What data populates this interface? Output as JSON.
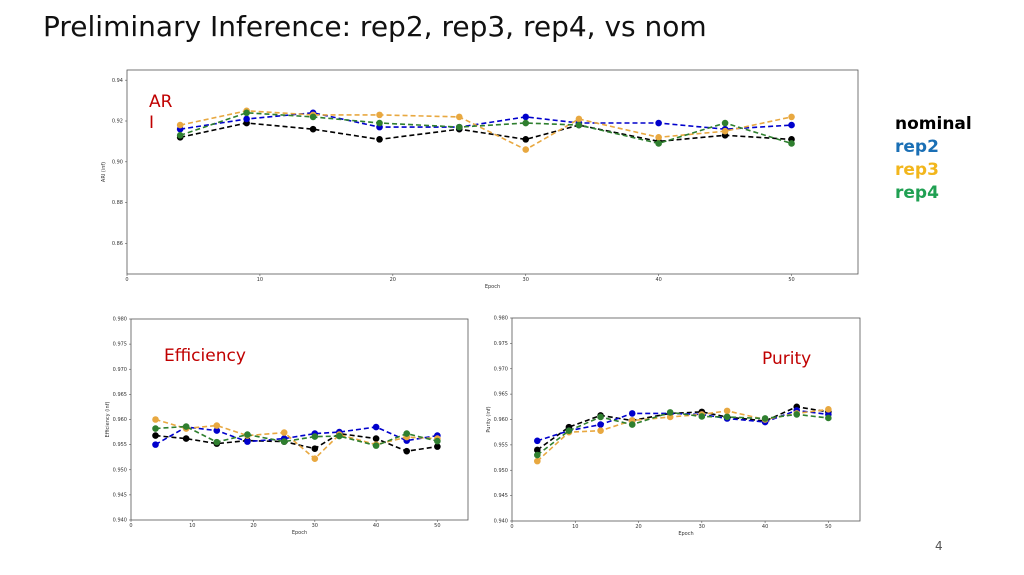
{
  "title": "Preliminary Inference: rep2, rep3, rep4, vs nom",
  "page_number": "4",
  "legend": [
    {
      "label": "nominal",
      "color": "#000000"
    },
    {
      "label": "rep2",
      "color": "#1a6fb5"
    },
    {
      "label": "rep3",
      "color": "#f2b61c"
    },
    {
      "label": "rep4",
      "color": "#1fa052"
    }
  ],
  "line_colors": {
    "nominal": "#000000",
    "rep2": "#0000cc",
    "rep3": "#e8a840",
    "rep4": "#2f7f2f"
  },
  "overlay_color": "#c00000",
  "chart_data": [
    {
      "type": "line",
      "id": "ari",
      "overlay_label": "AR\nI",
      "xlabel": "Epoch",
      "ylabel": "ARI (inf)",
      "xlim": [
        0,
        55
      ],
      "ylim": [
        0.845,
        0.945
      ],
      "xticks": [
        0,
        10,
        20,
        30,
        40,
        50
      ],
      "yticks": [
        0.86,
        0.88,
        0.9,
        0.92,
        0.94
      ],
      "ytick_labels": [
        "0.86",
        "0.88",
        "0.90",
        "0.92",
        "0.94"
      ],
      "x": [
        4,
        9,
        14,
        19,
        25,
        30,
        34,
        40,
        45,
        50
      ],
      "series": [
        {
          "key": "nominal",
          "values": [
            0.912,
            0.919,
            0.916,
            0.911,
            0.916,
            0.911,
            0.918,
            0.91,
            0.913,
            0.911
          ]
        },
        {
          "key": "rep2",
          "values": [
            0.916,
            0.921,
            0.924,
            0.917,
            0.917,
            0.922,
            0.919,
            0.919,
            0.916,
            0.918
          ]
        },
        {
          "key": "rep3",
          "values": [
            0.918,
            0.925,
            0.923,
            0.923,
            0.922,
            0.906,
            0.921,
            0.912,
            0.915,
            0.922
          ]
        },
        {
          "key": "rep4",
          "values": [
            0.913,
            0.924,
            0.922,
            0.919,
            0.917,
            0.919,
            0.918,
            0.909,
            0.919,
            0.909
          ]
        }
      ]
    },
    {
      "type": "line",
      "id": "efficiency",
      "overlay_label": "Efficiency",
      "xlabel": "Epoch",
      "ylabel": "Efficiency (inf)",
      "xlim": [
        0,
        55
      ],
      "ylim": [
        0.94,
        0.98
      ],
      "xticks": [
        0,
        10,
        20,
        30,
        40,
        50
      ],
      "yticks": [
        0.94,
        0.945,
        0.95,
        0.955,
        0.96,
        0.965,
        0.97,
        0.975,
        0.98
      ],
      "ytick_labels": [
        "0.940",
        "0.945",
        "0.950",
        "0.955",
        "0.960",
        "0.965",
        "0.970",
        "0.975",
        "0.980"
      ],
      "x": [
        4,
        9,
        14,
        19,
        25,
        30,
        34,
        40,
        45,
        50
      ],
      "series": [
        {
          "key": "nominal",
          "values": [
            0.9568,
            0.9562,
            0.9552,
            0.9558,
            0.9556,
            0.9542,
            0.9572,
            0.9562,
            0.9537,
            0.9546
          ]
        },
        {
          "key": "rep2",
          "values": [
            0.955,
            0.9585,
            0.9578,
            0.9556,
            0.9562,
            0.9572,
            0.9575,
            0.9585,
            0.9558,
            0.9568
          ]
        },
        {
          "key": "rep3",
          "values": [
            0.96,
            0.9582,
            0.9588,
            0.9568,
            0.9574,
            0.9522,
            0.957,
            0.955,
            0.9565,
            0.9562
          ]
        },
        {
          "key": "rep4",
          "values": [
            0.9582,
            0.9586,
            0.9555,
            0.957,
            0.9556,
            0.9566,
            0.9567,
            0.9548,
            0.9572,
            0.9557
          ]
        }
      ]
    },
    {
      "type": "line",
      "id": "purity",
      "overlay_label": "Purity",
      "xlabel": "Epoch",
      "ylabel": "Purity (inf)",
      "xlim": [
        0,
        55
      ],
      "ylim": [
        0.94,
        0.98
      ],
      "xticks": [
        0,
        10,
        20,
        30,
        40,
        50
      ],
      "yticks": [
        0.94,
        0.945,
        0.95,
        0.955,
        0.96,
        0.965,
        0.97,
        0.975,
        0.98
      ],
      "ytick_labels": [
        "0.940",
        "0.945",
        "0.950",
        "0.955",
        "0.960",
        "0.965",
        "0.970",
        "0.975",
        "0.980"
      ],
      "x": [
        4,
        9,
        14,
        19,
        25,
        30,
        34,
        40,
        45,
        50
      ],
      "series": [
        {
          "key": "nominal",
          "values": [
            0.954,
            0.9585,
            0.9608,
            0.9598,
            0.9612,
            0.9615,
            0.9605,
            0.9597,
            0.9625,
            0.9615
          ]
        },
        {
          "key": "rep2",
          "values": [
            0.9558,
            0.9578,
            0.959,
            0.9612,
            0.9612,
            0.961,
            0.9602,
            0.9595,
            0.9618,
            0.961
          ]
        },
        {
          "key": "rep3",
          "values": [
            0.9518,
            0.9575,
            0.9578,
            0.9598,
            0.9605,
            0.961,
            0.9617,
            0.96,
            0.9612,
            0.962
          ]
        },
        {
          "key": "rep4",
          "values": [
            0.953,
            0.9578,
            0.9605,
            0.959,
            0.9614,
            0.9606,
            0.9605,
            0.9602,
            0.961,
            0.9603
          ]
        }
      ]
    }
  ]
}
